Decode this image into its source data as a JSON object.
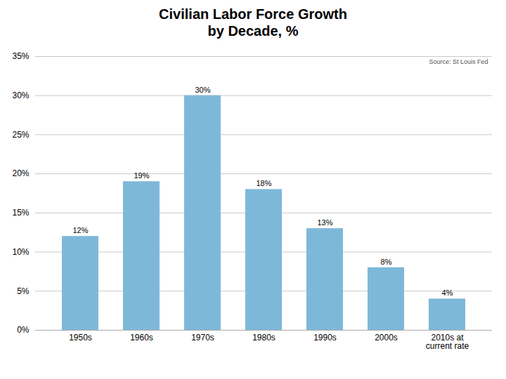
{
  "chart_data": {
    "type": "bar",
    "title": "Civilian Labor Force Growth\nby Decade, %",
    "categories": [
      "1950s",
      "1960s",
      "1970s",
      "1980s",
      "1990s",
      "2000s",
      "2010s at\ncurrent rate"
    ],
    "values": [
      12,
      19,
      30,
      18,
      13,
      8,
      4
    ],
    "value_labels": [
      "12%",
      "19%",
      "30%",
      "18%",
      "13%",
      "8%",
      "4%"
    ],
    "data_labels": true,
    "color": "#7eb8d9",
    "ylim": [
      0,
      35
    ],
    "yticks": [
      {
        "value": 0,
        "label": "0%"
      },
      {
        "value": 5,
        "label": "5%"
      },
      {
        "value": 10,
        "label": "10%"
      },
      {
        "value": 15,
        "label": "15%"
      },
      {
        "value": 20,
        "label": "20%"
      },
      {
        "value": 25,
        "label": "25%"
      },
      {
        "value": 30,
        "label": "30%"
      },
      {
        "value": 35,
        "label": "35%"
      }
    ],
    "grid": true,
    "annotations": [
      "Source: St Louis Fed"
    ]
  }
}
